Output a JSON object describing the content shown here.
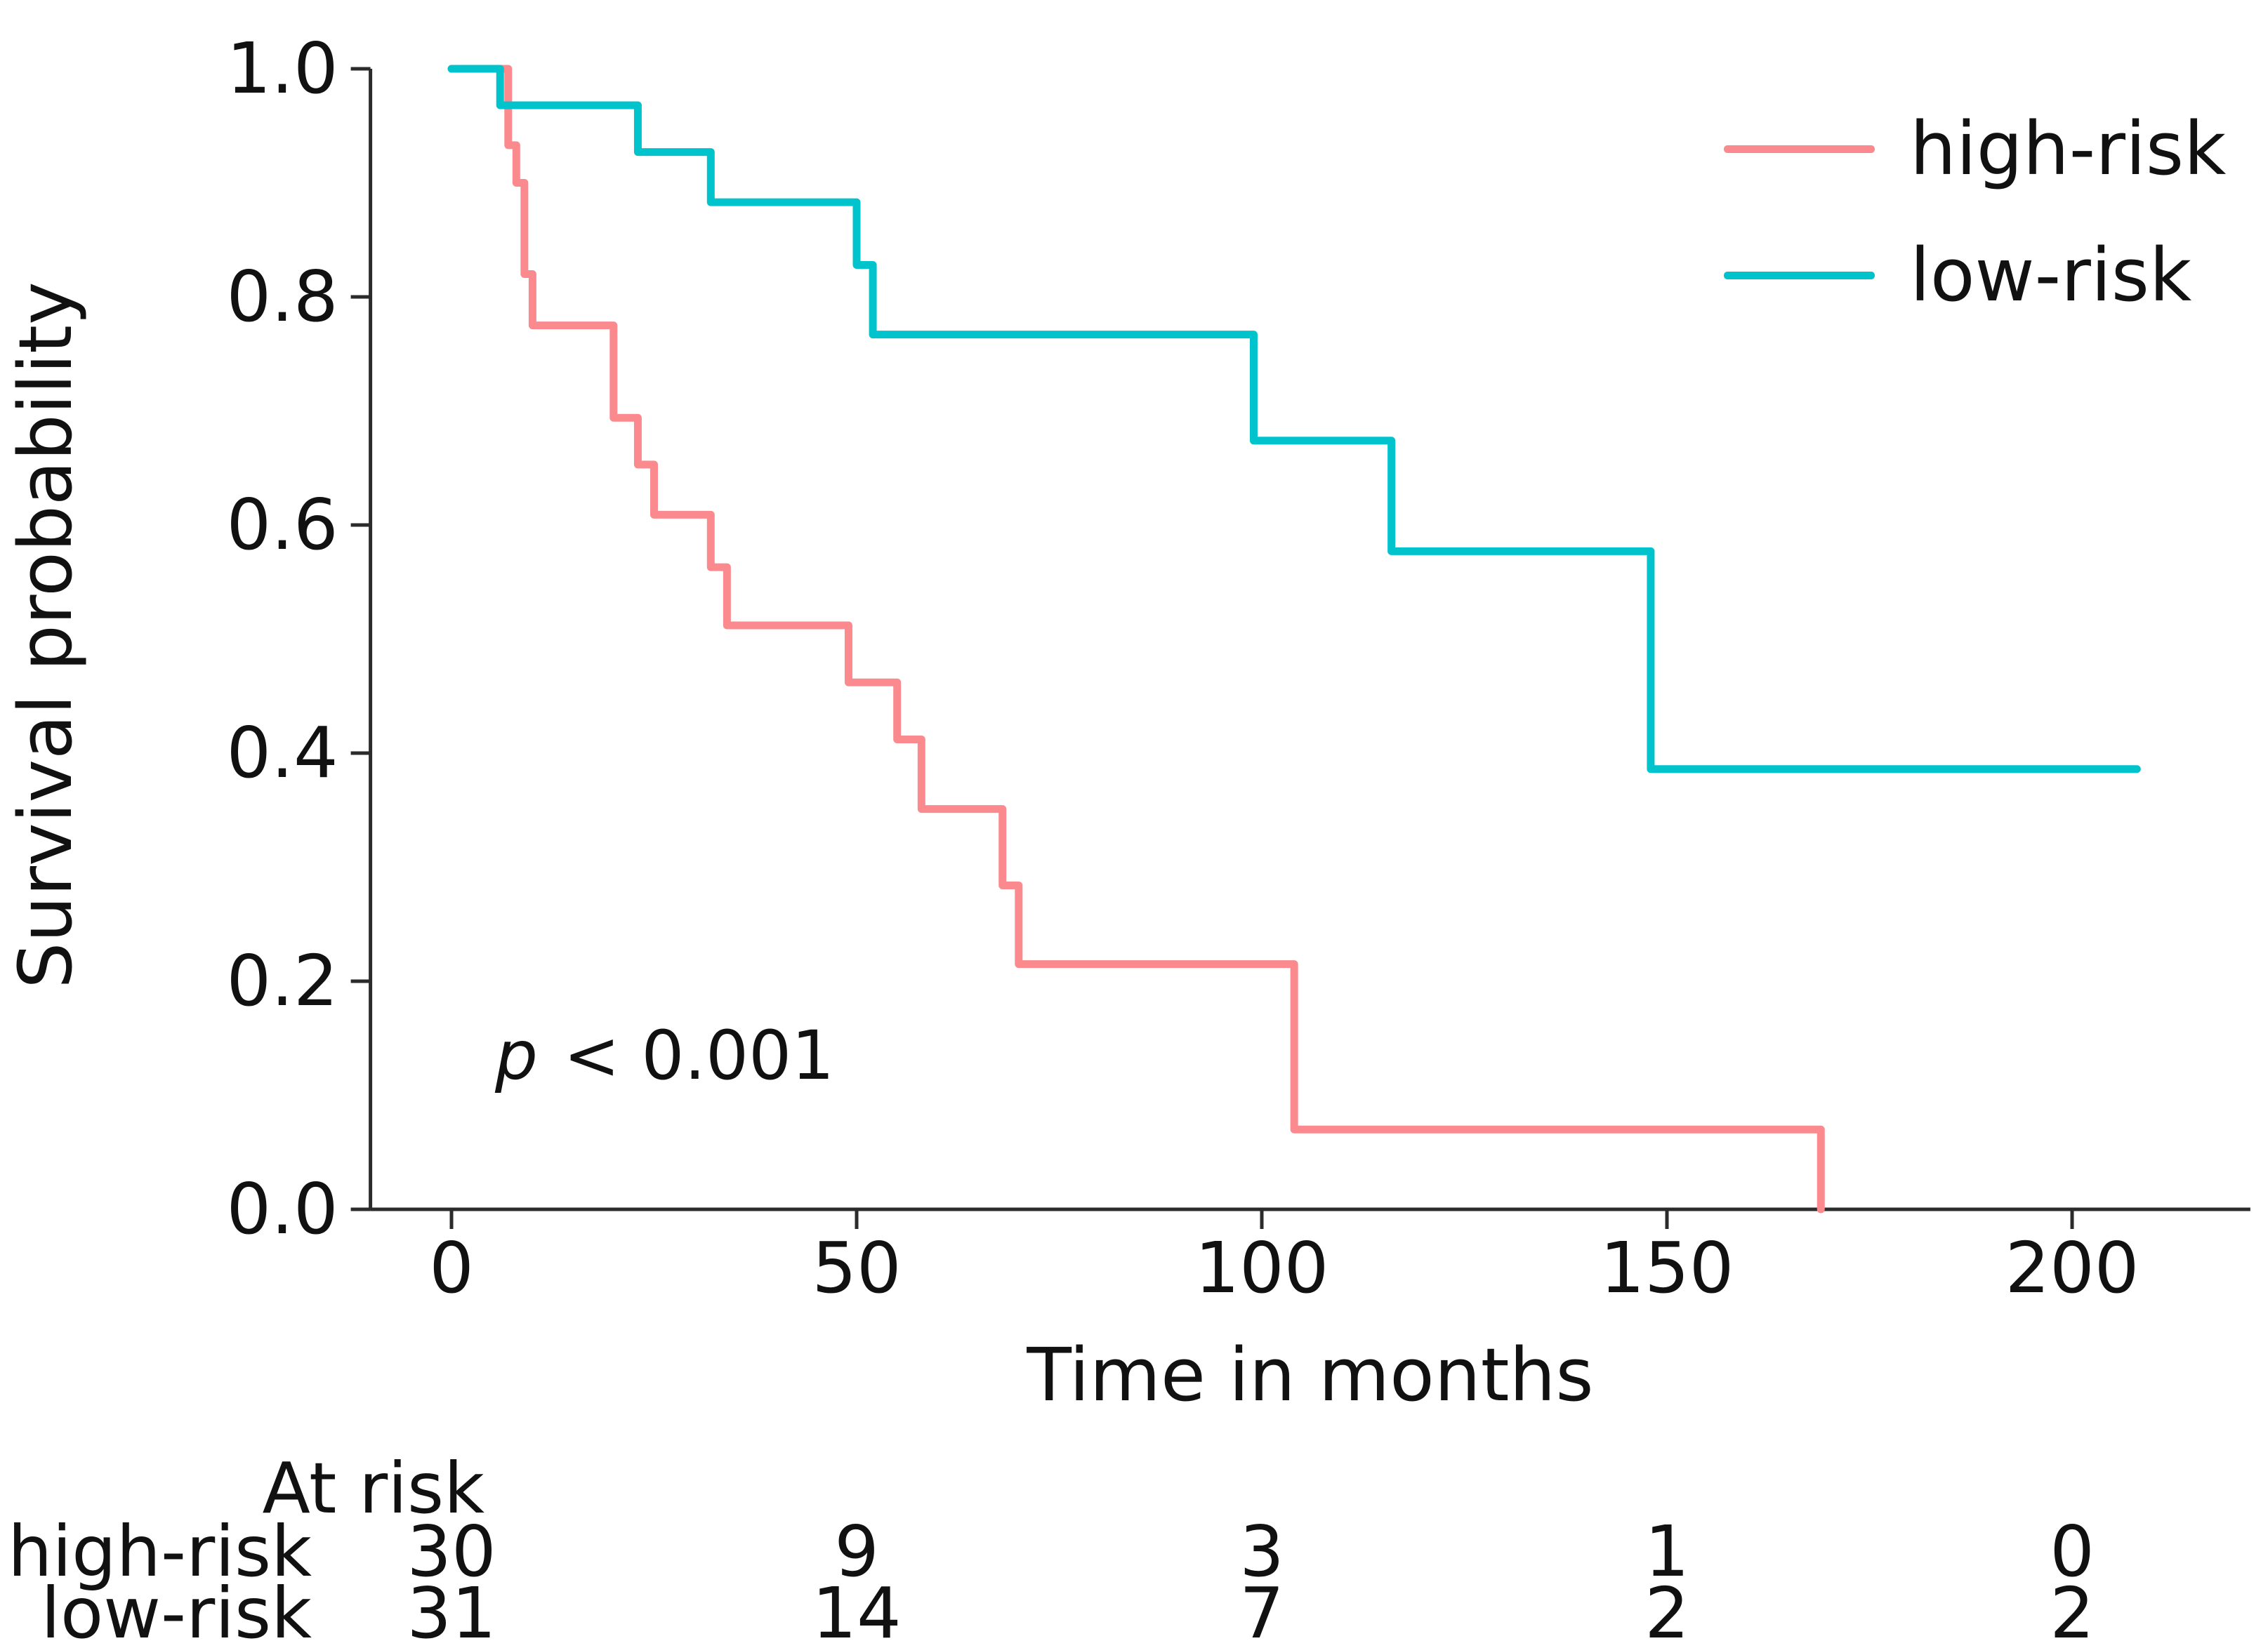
{
  "chart_data": {
    "type": "line",
    "subtype": "kaplan-meier-step",
    "title": "",
    "xlabel": "Time in months",
    "ylabel": "Survival probability",
    "xlim": [
      -10,
      222
    ],
    "ylim": [
      0,
      1.0
    ],
    "xticks": [
      0,
      50,
      100,
      150,
      200
    ],
    "yticks": [
      0.0,
      0.2,
      0.4,
      0.6,
      0.8,
      1.0
    ],
    "grid": false,
    "legend_position": "upper right",
    "axis_color": "#2b2b2b",
    "annotation": {
      "p_italic": "p",
      "p_rest": " < 0.001"
    },
    "series": [
      {
        "name": "high-risk",
        "color": "#FA8A8D",
        "end_time": 169,
        "points": [
          [
            0,
            1.0
          ],
          [
            7,
            0.933
          ],
          [
            8,
            0.9
          ],
          [
            9,
            0.82
          ],
          [
            10,
            0.775
          ],
          [
            20,
            0.694
          ],
          [
            23,
            0.653
          ],
          [
            25,
            0.609
          ],
          [
            32,
            0.563
          ],
          [
            34,
            0.512
          ],
          [
            49,
            0.462
          ],
          [
            55,
            0.412
          ],
          [
            58,
            0.351
          ],
          [
            68,
            0.284
          ],
          [
            70,
            0.215
          ],
          [
            104,
            0.07
          ],
          [
            169,
            0.0
          ]
        ]
      },
      {
        "name": "low-risk",
        "color": "#00C3CC",
        "end_time": 208,
        "points": [
          [
            0,
            1.0
          ],
          [
            6,
            0.968
          ],
          [
            23,
            0.927
          ],
          [
            32,
            0.883
          ],
          [
            50,
            0.828
          ],
          [
            52,
            0.767
          ],
          [
            99,
            0.674
          ],
          [
            116,
            0.577
          ],
          [
            148,
            0.386
          ]
        ]
      }
    ],
    "at_risk_table": {
      "header": "At risk",
      "times": [
        0,
        50,
        100,
        150,
        200
      ],
      "rows": [
        {
          "label": "high-risk",
          "counts": [
            30,
            9,
            3,
            1,
            0
          ]
        },
        {
          "label": "low-risk",
          "counts": [
            31,
            14,
            7,
            2,
            2
          ]
        }
      ]
    }
  },
  "legend": {
    "items": [
      {
        "label": "high-risk",
        "color": "#FA8A8D"
      },
      {
        "label": "low-risk",
        "color": "#00C3CC"
      }
    ]
  }
}
